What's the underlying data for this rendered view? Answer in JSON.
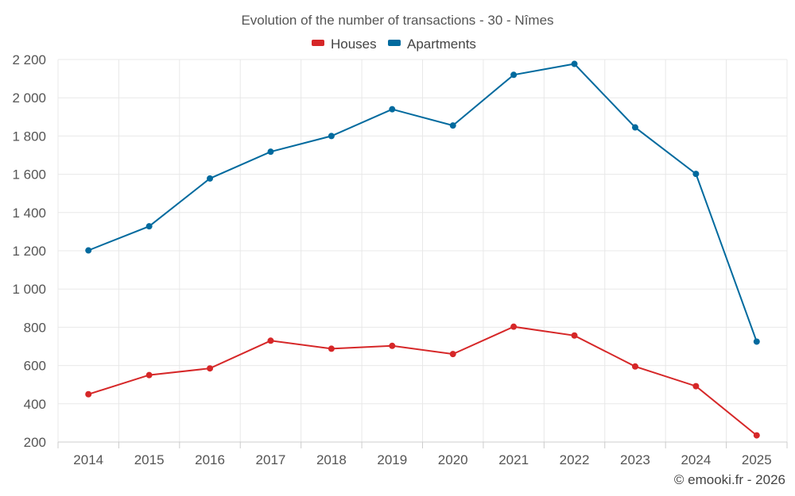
{
  "chart_data": {
    "type": "line",
    "title": "Evolution of the number of transactions - 30 - Nîmes",
    "categories": [
      "2014",
      "2015",
      "2016",
      "2017",
      "2018",
      "2019",
      "2020",
      "2021",
      "2022",
      "2023",
      "2024",
      "2025"
    ],
    "series": [
      {
        "name": "Houses",
        "color": "#d62728",
        "values": [
          450,
          550,
          585,
          730,
          688,
          703,
          660,
          803,
          757,
          595,
          492,
          235
        ]
      },
      {
        "name": "Apartments",
        "color": "#006a9e",
        "values": [
          1202,
          1328,
          1578,
          1718,
          1800,
          1940,
          1855,
          2120,
          2177,
          1845,
          1602,
          725
        ]
      }
    ],
    "ylim": [
      200,
      2200
    ],
    "yticks": [
      200,
      400,
      600,
      800,
      1000,
      1200,
      1400,
      1600,
      1800,
      2000,
      2200
    ],
    "ytick_labels": [
      "200",
      "400",
      "600",
      "800",
      "1 000",
      "1 200",
      "1 400",
      "1 600",
      "1 800",
      "2 000",
      "2 200"
    ],
    "legend_position": "top-center",
    "grid": true,
    "credit": "© emooki.fr - 2026"
  }
}
